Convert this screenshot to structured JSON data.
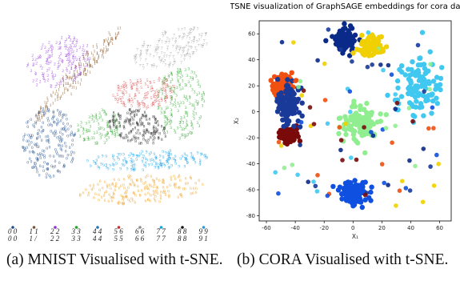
{
  "figure_a": {
    "caption": "(a) MNIST Visualised with t-SNE.",
    "legend_top": [
      "0 0",
      "1 1",
      "2 2",
      "3 3",
      "4 4",
      "5 6",
      "6 6",
      "7 7",
      "8 8",
      "9 9"
    ],
    "legend_bottom": [
      "0 0",
      "1 /",
      "2 2",
      "3 3",
      "4 4",
      "5 5",
      "6 6",
      "7 7",
      "8 8",
      "9 1"
    ],
    "legend_colors": [
      "#1f4e8c",
      "#7b5230",
      "#8b2fd6",
      "#2ca02c",
      "#1f77b4",
      "#d62728",
      "#8c8c8c",
      "#17a5c9",
      "#111111",
      "#1b9fe0"
    ],
    "clusters": [
      {
        "digit": "0",
        "color": "#1f4e8c"
      },
      {
        "digit": "1",
        "color": "#8b5a2b"
      },
      {
        "digit": "2",
        "color": "#9b3fe0"
      },
      {
        "digit": "3",
        "color": "#22a322"
      },
      {
        "digit": "4",
        "color": "#2b8fd8"
      },
      {
        "digit": "5",
        "color": "#d63a3a"
      },
      {
        "digit": "6",
        "color": "#f0a020"
      },
      {
        "digit": "7",
        "color": "#999999"
      },
      {
        "digit": "8",
        "color": "#111111"
      },
      {
        "digit": "9",
        "color": "#1aa3e8"
      }
    ]
  },
  "figure_b": {
    "caption": "(b) CORA Visualised with t-SNE.",
    "chart_data": {
      "type": "scatter",
      "title": "TSNE visualization of GraphSAGE embeddings for cora dataset",
      "xlabel": "X₁",
      "ylabel": "X₂",
      "xlim": [
        -65,
        68
      ],
      "ylim": [
        -84,
        70
      ],
      "xticks": [
        "-60",
        "-40",
        "-20",
        "0",
        "20",
        "40",
        "60"
      ],
      "yticks": [
        "60",
        "40",
        "20",
        "0",
        "-20",
        "-40",
        "-60",
        "-80"
      ],
      "grid": false,
      "series": [
        {
          "color": "#0a2a8a",
          "center": [
            -5,
            55
          ],
          "spread": [
            5,
            6
          ]
        },
        {
          "color": "#f0d000",
          "center": [
            12,
            50
          ],
          "spread": [
            6,
            5
          ]
        },
        {
          "color": "#1050e0",
          "center": [
            0,
            -63
          ],
          "spread": [
            7,
            7
          ]
        },
        {
          "color": "#40c8f0",
          "center": [
            45,
            18
          ],
          "spread": [
            12,
            18
          ]
        },
        {
          "color": "#90ee90",
          "center": [
            5,
            -8
          ],
          "spread": [
            10,
            9
          ]
        },
        {
          "color": "#f05010",
          "center": [
            -48,
            20
          ],
          "spread": [
            5,
            6
          ]
        },
        {
          "color": "#7a0a0a",
          "center": [
            -45,
            -18
          ],
          "spread": [
            4,
            4
          ]
        },
        {
          "color": "#1a3a9a",
          "center": [
            -45,
            5
          ],
          "spread": [
            6,
            12
          ]
        }
      ]
    }
  }
}
